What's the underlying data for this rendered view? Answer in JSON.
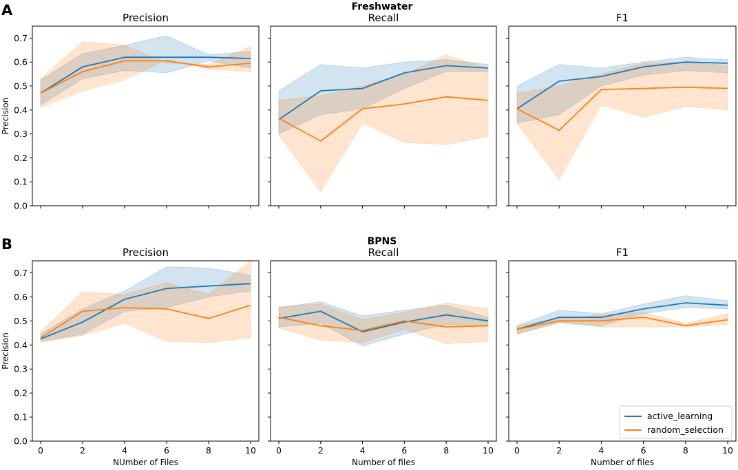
{
  "colors": {
    "active_learning": "#1f77b4",
    "random_selection": "#ff7f0e"
  },
  "rows": [
    {
      "letter": "A",
      "title": "Freshwater"
    },
    {
      "letter": "B",
      "title": "BPNS"
    }
  ],
  "legend": [
    {
      "key": "active_learning",
      "label": "active_learning"
    },
    {
      "key": "random_selection",
      "label": "random_selection"
    }
  ],
  "chart_data": [
    {
      "type": "line",
      "row": "Freshwater",
      "title": "Precision",
      "xlabel": "",
      "ylabel": "Precision",
      "xlim": [
        0,
        10
      ],
      "ylim": [
        0,
        0.75
      ],
      "xticks": [
        0,
        2,
        4,
        6,
        8,
        10
      ],
      "yticks": [
        0.0,
        0.1,
        0.2,
        0.3,
        0.4,
        0.5,
        0.6,
        0.7
      ],
      "x": [
        0,
        2,
        4,
        6,
        8,
        10
      ],
      "series": [
        {
          "name": "active_learning",
          "values": [
            0.47,
            0.58,
            0.62,
            0.62,
            0.62,
            0.615
          ],
          "band_low": [
            0.42,
            0.53,
            0.565,
            0.555,
            0.605,
            0.575
          ],
          "band_high": [
            0.525,
            0.635,
            0.67,
            0.71,
            0.63,
            0.645
          ]
        },
        {
          "name": "random_selection",
          "values": [
            0.47,
            0.56,
            0.605,
            0.605,
            0.58,
            0.595
          ],
          "band_low": [
            0.41,
            0.48,
            0.525,
            0.61,
            0.57,
            0.56
          ],
          "band_high": [
            0.53,
            0.685,
            0.67,
            0.595,
            0.59,
            0.665
          ]
        }
      ]
    },
    {
      "type": "line",
      "row": "Freshwater",
      "title": "Recall",
      "xlabel": "",
      "ylabel": "",
      "xlim": [
        0,
        10
      ],
      "ylim": [
        0,
        0.75
      ],
      "xticks": [
        0,
        2,
        4,
        6,
        8,
        10
      ],
      "yticks": [
        0.0,
        0.1,
        0.2,
        0.3,
        0.4,
        0.5,
        0.6,
        0.7
      ],
      "x": [
        0,
        2,
        4,
        6,
        8,
        10
      ],
      "series": [
        {
          "name": "active_learning",
          "values": [
            0.36,
            0.48,
            0.49,
            0.555,
            0.585,
            0.575
          ],
          "band_low": [
            0.3,
            0.38,
            0.405,
            0.49,
            0.56,
            0.56
          ],
          "band_high": [
            0.48,
            0.59,
            0.575,
            0.6,
            0.61,
            0.59
          ]
        },
        {
          "name": "random_selection",
          "values": [
            0.365,
            0.27,
            0.405,
            0.425,
            0.455,
            0.44
          ],
          "band_low": [
            0.295,
            0.06,
            0.345,
            0.265,
            0.255,
            0.29
          ],
          "band_high": [
            0.44,
            0.46,
            0.5,
            0.55,
            0.63,
            0.575
          ]
        }
      ]
    },
    {
      "type": "line",
      "row": "Freshwater",
      "title": "F1",
      "xlabel": "",
      "ylabel": "",
      "xlim": [
        0,
        10
      ],
      "ylim": [
        0,
        0.75
      ],
      "xticks": [
        0,
        2,
        4,
        6,
        8,
        10
      ],
      "yticks": [
        0.0,
        0.1,
        0.2,
        0.3,
        0.4,
        0.5,
        0.6,
        0.7
      ],
      "x": [
        0,
        2,
        4,
        6,
        8,
        10
      ],
      "series": [
        {
          "name": "active_learning",
          "values": [
            0.405,
            0.52,
            0.54,
            0.58,
            0.6,
            0.595
          ],
          "band_low": [
            0.345,
            0.38,
            0.5,
            0.545,
            0.565,
            0.555
          ],
          "band_high": [
            0.5,
            0.59,
            0.575,
            0.6,
            0.62,
            0.61
          ]
        },
        {
          "name": "random_selection",
          "values": [
            0.405,
            0.315,
            0.485,
            0.49,
            0.495,
            0.49
          ],
          "band_low": [
            0.345,
            0.11,
            0.42,
            0.37,
            0.415,
            0.4
          ],
          "band_high": [
            0.47,
            0.5,
            0.55,
            0.595,
            0.6,
            0.585
          ]
        }
      ]
    },
    {
      "type": "line",
      "row": "BPNS",
      "title": "Precision",
      "xlabel": "NUmber of Files",
      "ylabel": "Precision",
      "xlim": [
        0,
        10
      ],
      "ylim": [
        0,
        0.75
      ],
      "xticks": [
        0,
        2,
        4,
        6,
        8,
        10
      ],
      "yticks": [
        0.0,
        0.1,
        0.2,
        0.3,
        0.4,
        0.5,
        0.6,
        0.7
      ],
      "x": [
        0,
        2,
        4,
        6,
        8,
        10
      ],
      "series": [
        {
          "name": "active_learning",
          "values": [
            0.425,
            0.495,
            0.59,
            0.635,
            0.645,
            0.655
          ],
          "band_low": [
            0.415,
            0.445,
            0.54,
            0.555,
            0.6,
            0.625
          ],
          "band_high": [
            0.445,
            0.55,
            0.625,
            0.725,
            0.72,
            0.69
          ]
        },
        {
          "name": "random_selection",
          "values": [
            0.43,
            0.54,
            0.555,
            0.55,
            0.51,
            0.565
          ],
          "band_low": [
            0.41,
            0.44,
            0.49,
            0.415,
            0.41,
            0.43
          ],
          "band_high": [
            0.455,
            0.62,
            0.61,
            0.66,
            0.61,
            0.75
          ]
        }
      ]
    },
    {
      "type": "line",
      "row": "BPNS",
      "title": "Recall",
      "xlabel": "Number of files",
      "ylabel": "",
      "xlim": [
        0,
        10
      ],
      "ylim": [
        0,
        0.75
      ],
      "xticks": [
        0,
        2,
        4,
        6,
        8,
        10
      ],
      "yticks": [
        0.0,
        0.1,
        0.2,
        0.3,
        0.4,
        0.5,
        0.6,
        0.7
      ],
      "x": [
        0,
        2,
        4,
        6,
        8,
        10
      ],
      "series": [
        {
          "name": "active_learning",
          "values": [
            0.51,
            0.54,
            0.455,
            0.495,
            0.525,
            0.5
          ],
          "band_low": [
            0.475,
            0.49,
            0.395,
            0.445,
            0.485,
            0.48
          ],
          "band_high": [
            0.555,
            0.58,
            0.52,
            0.545,
            0.565,
            0.515
          ]
        },
        {
          "name": "random_selection",
          "values": [
            0.515,
            0.48,
            0.46,
            0.5,
            0.475,
            0.48
          ],
          "band_low": [
            0.47,
            0.42,
            0.41,
            0.465,
            0.405,
            0.415
          ],
          "band_high": [
            0.56,
            0.57,
            0.505,
            0.535,
            0.575,
            0.55
          ]
        }
      ]
    },
    {
      "type": "line",
      "row": "BPNS",
      "title": "F1",
      "xlabel": "Number of files",
      "ylabel": "",
      "xlim": [
        0,
        10
      ],
      "ylim": [
        0,
        0.75
      ],
      "xticks": [
        0,
        2,
        4,
        6,
        8,
        10
      ],
      "yticks": [
        0.0,
        0.1,
        0.2,
        0.3,
        0.4,
        0.5,
        0.6,
        0.7
      ],
      "x": [
        0,
        2,
        4,
        6,
        8,
        10
      ],
      "series": [
        {
          "name": "active_learning",
          "values": [
            0.465,
            0.515,
            0.515,
            0.55,
            0.575,
            0.565
          ],
          "band_low": [
            0.445,
            0.495,
            0.48,
            0.53,
            0.555,
            0.55
          ],
          "band_high": [
            0.48,
            0.545,
            0.53,
            0.57,
            0.605,
            0.585
          ]
        },
        {
          "name": "random_selection",
          "values": [
            0.465,
            0.5,
            0.5,
            0.515,
            0.48,
            0.505
          ],
          "band_low": [
            0.445,
            0.49,
            0.475,
            0.475,
            0.475,
            0.485
          ],
          "band_high": [
            0.48,
            0.51,
            0.525,
            0.535,
            0.49,
            0.53
          ]
        }
      ]
    }
  ]
}
